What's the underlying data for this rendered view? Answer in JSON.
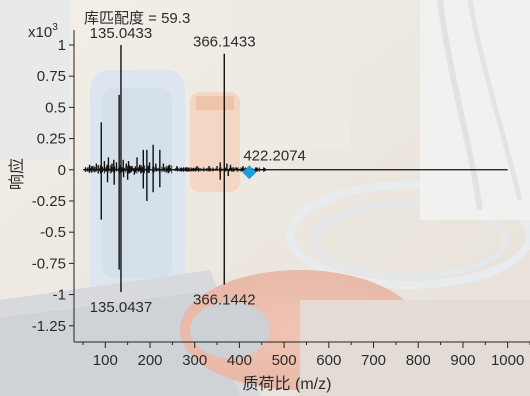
{
  "chart_data": {
    "type": "line",
    "title": "库匹配度 = 59.3",
    "xlabel": "质荷比 (m/z)",
    "ylabel": "响应",
    "y_multiplier_label": "x10",
    "y_multiplier_exp": "3",
    "xlim": [
      30,
      1050
    ],
    "ylim": [
      -1.38,
      1.12
    ],
    "grid": false,
    "x_ticks": [
      {
        "value": 100,
        "label": "100"
      },
      {
        "value": 200,
        "label": "200"
      },
      {
        "value": 300,
        "label": "300"
      },
      {
        "value": 400,
        "label": "400"
      },
      {
        "value": 500,
        "label": "500"
      },
      {
        "value": 600,
        "label": "600"
      },
      {
        "value": 700,
        "label": "700"
      },
      {
        "value": 800,
        "label": "800"
      },
      {
        "value": 900,
        "label": "900"
      },
      {
        "value": 1000,
        "label": "1000"
      }
    ],
    "y_ticks": [
      {
        "value": 1,
        "label": "1"
      },
      {
        "value": 0.75,
        "label": "0.75"
      },
      {
        "value": 0.5,
        "label": "0.5"
      },
      {
        "value": 0.25,
        "label": "0.25"
      },
      {
        "value": 0,
        "label": "0"
      },
      {
        "value": -0.25,
        "label": "-0.25"
      },
      {
        "value": -0.5,
        "label": "-0.5"
      },
      {
        "value": -0.75,
        "label": "-0.75"
      },
      {
        "value": -1,
        "label": "-1"
      },
      {
        "value": -1.25,
        "label": "-1.25"
      }
    ],
    "series": [
      {
        "role": "measured",
        "color": "#111111",
        "peaks": [
          {
            "mz": 65,
            "y": 0.04
          },
          {
            "mz": 72,
            "y": 0.03
          },
          {
            "mz": 80,
            "y": 0.05
          },
          {
            "mz": 91,
            "y": 0.38
          },
          {
            "mz": 98,
            "y": 0.07
          },
          {
            "mz": 104,
            "y": 0.04
          },
          {
            "mz": 107,
            "y": 0.1
          },
          {
            "mz": 115,
            "y": 0.05
          },
          {
            "mz": 119,
            "y": 0.08
          },
          {
            "mz": 125,
            "y": 0.06
          },
          {
            "mz": 131,
            "y": 0.6
          },
          {
            "mz": 135.0433,
            "y": 1.0
          },
          {
            "mz": 140,
            "y": 0.08
          },
          {
            "mz": 147,
            "y": 0.05
          },
          {
            "mz": 152,
            "y": 0.07
          },
          {
            "mz": 160,
            "y": 0.03
          },
          {
            "mz": 171,
            "y": 0.1
          },
          {
            "mz": 177,
            "y": 0.04
          },
          {
            "mz": 185,
            "y": 0.16
          },
          {
            "mz": 193,
            "y": 0.16
          },
          {
            "mz": 199,
            "y": 0.06
          },
          {
            "mz": 207,
            "y": 0.2
          },
          {
            "mz": 213,
            "y": 0.05
          },
          {
            "mz": 222,
            "y": 0.16
          },
          {
            "mz": 230,
            "y": 0.05
          },
          {
            "mz": 244,
            "y": 0.04
          },
          {
            "mz": 260,
            "y": 0.03
          },
          {
            "mz": 280,
            "y": 0.02
          },
          {
            "mz": 305,
            "y": 0.03
          },
          {
            "mz": 332,
            "y": 0.03
          },
          {
            "mz": 350,
            "y": 0.03
          },
          {
            "mz": 357,
            "y": 0.06
          },
          {
            "mz": 366.1433,
            "y": 0.93
          },
          {
            "mz": 372,
            "y": 0.05
          },
          {
            "mz": 380,
            "y": 0.04
          },
          {
            "mz": 392,
            "y": 0.02
          },
          {
            "mz": 408,
            "y": 0.03
          },
          {
            "mz": 422.2074,
            "y": 0.02
          }
        ]
      },
      {
        "role": "library",
        "color": "#111111",
        "peaks": [
          {
            "mz": 91,
            "y": -0.4
          },
          {
            "mz": 105,
            "y": -0.1
          },
          {
            "mz": 120,
            "y": -0.12
          },
          {
            "mz": 131,
            "y": -0.8
          },
          {
            "mz": 135.0437,
            "y": -0.98
          },
          {
            "mz": 141,
            "y": -0.06
          },
          {
            "mz": 150,
            "y": -0.08
          },
          {
            "mz": 165,
            "y": -0.04
          },
          {
            "mz": 185,
            "y": -0.15
          },
          {
            "mz": 193,
            "y": -0.25
          },
          {
            "mz": 207,
            "y": -0.18
          },
          {
            "mz": 222,
            "y": -0.14
          },
          {
            "mz": 357,
            "y": -0.08
          },
          {
            "mz": 366.1442,
            "y": -0.92
          },
          {
            "mz": 375,
            "y": -0.05
          }
        ]
      }
    ],
    "annotations": [
      {
        "text": "135.0433",
        "mz": 135.0433,
        "y": 1.0,
        "side": "top"
      },
      {
        "text": "366.1433",
        "mz": 366.1433,
        "y": 0.93,
        "side": "top"
      },
      {
        "text": "422.2074",
        "mz": 422.2074,
        "y": 0.02,
        "side": "top"
      },
      {
        "text": "135.0437",
        "mz": 135.0437,
        "y": -0.98,
        "side": "bottom"
      },
      {
        "text": "366.1442",
        "mz": 366.1442,
        "y": -0.92,
        "side": "bottom"
      }
    ],
    "marker": {
      "mz": 422.2074,
      "y": -0.02,
      "shape": "diamond",
      "color": "#1aa0d8"
    }
  }
}
